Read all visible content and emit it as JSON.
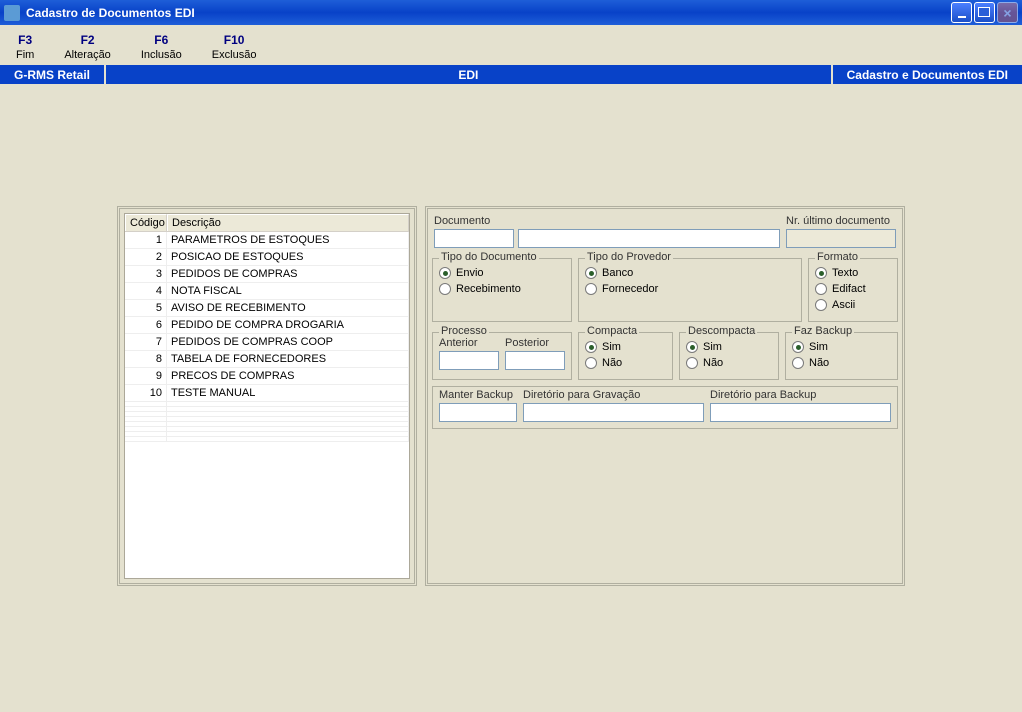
{
  "window": {
    "title": "Cadastro de Documentos EDI"
  },
  "menu": [
    {
      "key": "F3",
      "label": "Fim"
    },
    {
      "key": "F2",
      "label": "Alteração"
    },
    {
      "key": "F6",
      "label": "Inclusão"
    },
    {
      "key": "F10",
      "label": "Exclusão"
    }
  ],
  "infobar": {
    "left": "G-RMS Retail",
    "center": "EDI",
    "right": "Cadastro e Documentos EDI"
  },
  "grid": {
    "columns": {
      "code": "Código",
      "desc": "Descrição"
    },
    "rows": [
      {
        "code": "1",
        "desc": "PARAMETROS DE ESTOQUES"
      },
      {
        "code": "2",
        "desc": "POSICAO DE ESTOQUES"
      },
      {
        "code": "3",
        "desc": "PEDIDOS DE COMPRAS"
      },
      {
        "code": "4",
        "desc": "NOTA FISCAL"
      },
      {
        "code": "5",
        "desc": "AVISO DE RECEBIMENTO"
      },
      {
        "code": "6",
        "desc": "PEDIDO DE COMPRA DROGARIA"
      },
      {
        "code": "7",
        "desc": "PEDIDOS DE COMPRAS COOP"
      },
      {
        "code": "8",
        "desc": "TABELA DE FORNECEDORES"
      },
      {
        "code": "9",
        "desc": "PRECOS DE COMPRAS"
      },
      {
        "code": "10",
        "desc": "TESTE MANUAL"
      }
    ]
  },
  "form": {
    "documento_label": "Documento",
    "nr_ultimo_label": "Nr. último documento",
    "documento_code": "",
    "documento_desc": "",
    "nr_ultimo_value": "",
    "tipo_doc": {
      "legend": "Tipo do Documento",
      "options": {
        "envio": "Envio",
        "receb": "Recebimento"
      },
      "selected": "envio"
    },
    "tipo_prov": {
      "legend": "Tipo do Provedor",
      "options": {
        "banco": "Banco",
        "forn": "Fornecedor"
      },
      "selected": "banco"
    },
    "formato": {
      "legend": "Formato",
      "options": {
        "texto": "Texto",
        "edifact": "Edifact",
        "ascii": "Ascii"
      },
      "selected": "texto"
    },
    "processo": {
      "legend": "Processo",
      "anterior_label": "Anterior",
      "posterior_label": "Posterior",
      "anterior": "",
      "posterior": ""
    },
    "compacta": {
      "legend": "Compacta",
      "options": {
        "sim": "Sim",
        "nao": "Não"
      },
      "selected": "sim"
    },
    "descompacta": {
      "legend": "Descompacta",
      "options": {
        "sim": "Sim",
        "nao": "Não"
      },
      "selected": "sim"
    },
    "faz_backup": {
      "legend": "Faz Backup",
      "options": {
        "sim": "Sim",
        "nao": "Não"
      },
      "selected": "sim"
    },
    "bottom": {
      "manter_backup_label": "Manter Backup",
      "dir_gravacao_label": "Diretório para Gravação",
      "dir_backup_label": "Diretório para Backup",
      "manter_backup": "",
      "dir_gravacao": "",
      "dir_backup": ""
    }
  },
  "colors": {
    "titlebar": "#0842c8",
    "background": "#e4e1cf",
    "accent": "#000080"
  }
}
